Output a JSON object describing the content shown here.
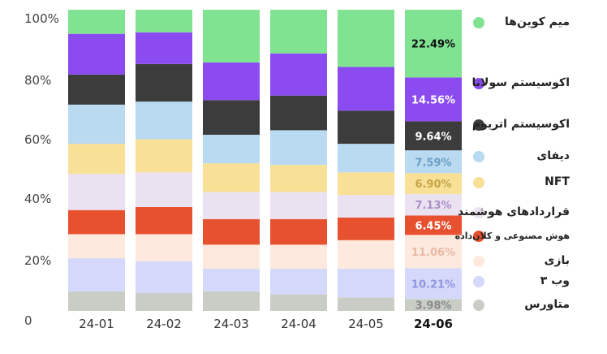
{
  "chart_data": {
    "type": "bar",
    "stacked": true,
    "normalized": true,
    "categories": [
      "24-01",
      "24-02",
      "24-03",
      "24-04",
      "24-05",
      "24-06"
    ],
    "highlight_category": "24-06",
    "y_ticks": [
      "0",
      "20%",
      "40%",
      "60%",
      "80%",
      "100%"
    ],
    "ylim": [
      0,
      100
    ],
    "grid": false,
    "legend_position": "right",
    "series": [
      {
        "name": "متاورس",
        "color": "#c9cdc6",
        "values": [
          6.5,
          6.0,
          6.5,
          5.5,
          4.5,
          3.98
        ]
      },
      {
        "name": "وب ۳",
        "color": "#d4d9fb",
        "values": [
          11.0,
          10.5,
          7.5,
          8.5,
          9.5,
          10.21
        ]
      },
      {
        "name": "بازی",
        "color": "#fde9de",
        "values": [
          8.0,
          9.0,
          8.0,
          8.0,
          9.5,
          11.06
        ]
      },
      {
        "name": "هوش مصنوعی و کلان‌داده",
        "color": "#e8512f",
        "values": [
          8.0,
          9.0,
          8.5,
          8.5,
          7.5,
          6.45
        ]
      },
      {
        "name": "قراردادهای هوشمند",
        "color": "#ebe2f1",
        "values": [
          12.0,
          11.5,
          9.0,
          9.0,
          7.5,
          7.13
        ]
      },
      {
        "name": "NFT",
        "color": "#f8e097",
        "values": [
          10.0,
          11.0,
          9.5,
          9.0,
          7.5,
          6.9
        ]
      },
      {
        "name": "دیفای",
        "color": "#b9daf0",
        "values": [
          13.0,
          12.5,
          9.5,
          11.5,
          9.5,
          7.59
        ]
      },
      {
        "name": "اکوسیستم اتریوم",
        "color": "#3c3c3c",
        "values": [
          10.0,
          12.5,
          11.5,
          11.5,
          11.0,
          9.64
        ]
      },
      {
        "name": "اکوسیستم سولانا",
        "color": "#8b4bf0",
        "values": [
          13.5,
          10.5,
          12.5,
          14.0,
          14.5,
          14.56
        ]
      },
      {
        "name": "میم کوین‌ها",
        "color": "#7fe392",
        "values": [
          8.0,
          7.5,
          17.5,
          14.5,
          19.0,
          22.49
        ]
      }
    ],
    "data_labels_category": "24-06",
    "data_labels": [
      "3.98%",
      "10.21%",
      "11.06%",
      "6.45%",
      "7.13%",
      "6.90%",
      "7.59%",
      "9.64%",
      "14.56%",
      "22.49%"
    ],
    "data_label_colors": [
      "#8a8a8a",
      "#8f95e0",
      "#e9b9a5",
      "#ffffff",
      "#a88fc6",
      "#c6a548",
      "#6a9fc6",
      "#ffffff",
      "#ffffff",
      "#111111"
    ]
  }
}
